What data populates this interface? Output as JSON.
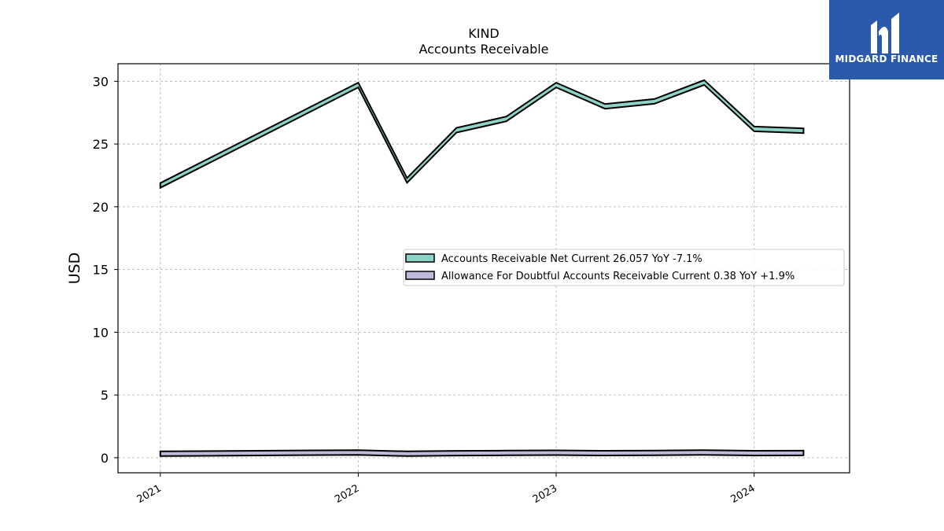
{
  "chart_data": {
    "type": "area",
    "title": "KIND",
    "subtitle": "Accounts Receivable",
    "ylabel": "USD",
    "xlabel": "",
    "ylim": [
      -1.2,
      31.4
    ],
    "xlim": [
      "2020-10-15",
      "2024-06-25"
    ],
    "yticks": [
      0,
      5,
      10,
      15,
      20,
      25,
      30
    ],
    "xticks": [
      "2021",
      "2022",
      "2023",
      "2024"
    ],
    "xtick_dates": [
      "2021-01-01",
      "2022-01-01",
      "2023-01-01",
      "2024-01-01"
    ],
    "grid": true,
    "legend_position": "center-right",
    "x": [
      "2021-01-01",
      "2022-01-01",
      "2022-04-01",
      "2022-07-01",
      "2022-10-01",
      "2023-01-01",
      "2023-04-01",
      "2023-07-01",
      "2023-10-01",
      "2024-01-01",
      "2024-04-01"
    ],
    "series": [
      {
        "name": "Accounts Receivable Net Current",
        "legend_label": "Accounts Receivable Net Current  26.057 YoY -7.1%",
        "color": "#8dd3c7",
        "values": [
          21.7,
          29.7,
          22.1,
          26.1,
          27.0,
          29.7,
          28.0,
          28.4,
          29.9,
          26.2,
          26.06
        ]
      },
      {
        "name": "Allowance For Doubtful Accounts Receivable Current",
        "legend_label": "Allowance For Doubtful Accounts Receivable Current  0.38 YoY +1.9%",
        "color": "#bebada",
        "values": [
          0.32,
          0.42,
          0.32,
          0.36,
          0.38,
          0.4,
          0.37,
          0.38,
          0.42,
          0.37,
          0.38
        ]
      }
    ]
  },
  "logo": {
    "text": "MIDGARD FINANCE",
    "background": "#2b59ab"
  }
}
